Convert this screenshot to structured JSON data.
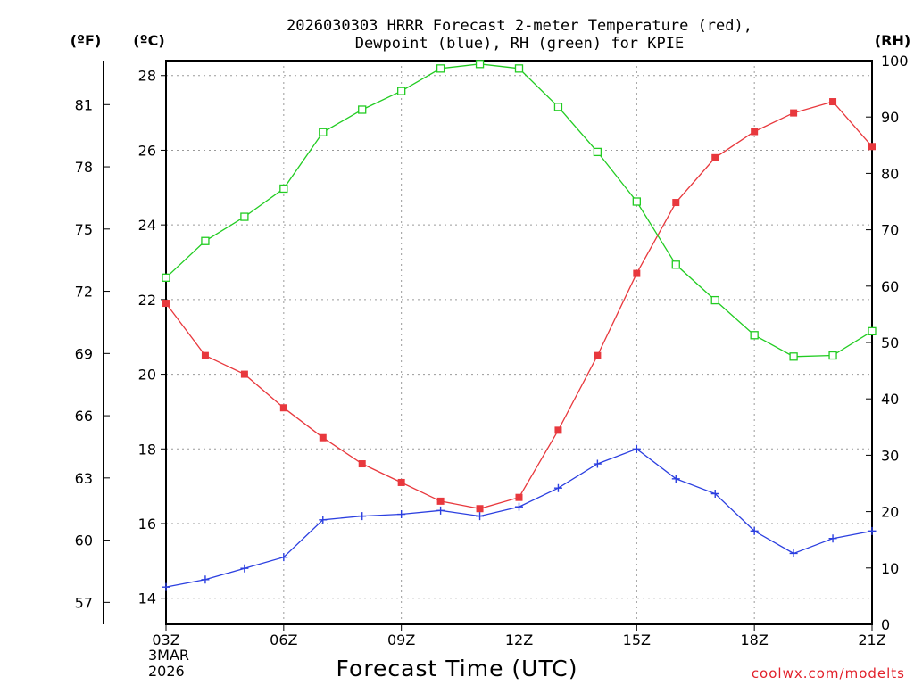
{
  "title_line1": "2026030303 HRRR Forecast 2-meter Temperature (red),",
  "title_line2": "Dewpoint (blue), RH (green) for KPIE",
  "unit_f": "(ºF)",
  "unit_c": "(ºC)",
  "unit_rh": "(RH)",
  "x_axis_title": "Forecast Time (UTC)",
  "date_line1": "3MAR",
  "date_line2": "2026",
  "credit": "coolwx.com/modelts",
  "colors": {
    "temperature": "#e8383d",
    "dewpoint": "#2b3fe0",
    "rh": "#22cc22",
    "axis": "#000000"
  },
  "chart_data": {
    "type": "line",
    "x": [
      3,
      4,
      5,
      6,
      7,
      8,
      9,
      10,
      11,
      12,
      13,
      14,
      15,
      16,
      17,
      18,
      19,
      20,
      21
    ],
    "x_ticks": [
      3,
      6,
      9,
      12,
      15,
      18,
      21
    ],
    "x_tick_labels": [
      "03Z",
      "06Z",
      "09Z",
      "12Z",
      "15Z",
      "18Z",
      "21Z"
    ],
    "xlim": [
      3,
      21
    ],
    "celsius_axis": {
      "ylim": [
        13.3,
        28.4
      ],
      "ticks": [
        14,
        16,
        18,
        20,
        22,
        24,
        26,
        28
      ]
    },
    "fahrenheit_axis": {
      "ticks": [
        57,
        60,
        63,
        66,
        69,
        72,
        75,
        78,
        81
      ]
    },
    "rh_axis": {
      "ylim": [
        0,
        100
      ],
      "ticks": [
        0,
        10,
        20,
        30,
        40,
        50,
        60,
        70,
        80,
        90,
        100
      ]
    },
    "series": [
      {
        "name": "Temperature",
        "axis": "celsius",
        "marker": "filled-square",
        "color": "#e8383d",
        "values": [
          21.9,
          20.5,
          20.0,
          19.1,
          18.3,
          17.6,
          17.1,
          16.6,
          16.4,
          16.7,
          18.5,
          20.5,
          22.7,
          24.6,
          25.8,
          26.5,
          27.0,
          27.3,
          26.1
        ]
      },
      {
        "name": "Dewpoint",
        "axis": "celsius",
        "marker": "plus",
        "color": "#2b3fe0",
        "values": [
          14.3,
          14.5,
          14.8,
          15.1,
          16.1,
          16.2,
          16.25,
          16.35,
          16.2,
          16.45,
          16.95,
          17.6,
          18.0,
          17.2,
          16.8,
          15.8,
          15.2,
          15.6,
          15.8
        ]
      },
      {
        "name": "RH",
        "axis": "rh",
        "marker": "open-square",
        "color": "#22cc22",
        "values": [
          61.5,
          68,
          72.3,
          77.3,
          87.3,
          91.3,
          94.6,
          98.6,
          99.4,
          98.6,
          91.8,
          83.8,
          75,
          63.8,
          57.5,
          51.3,
          47.5,
          47.7,
          52
        ]
      }
    ]
  }
}
